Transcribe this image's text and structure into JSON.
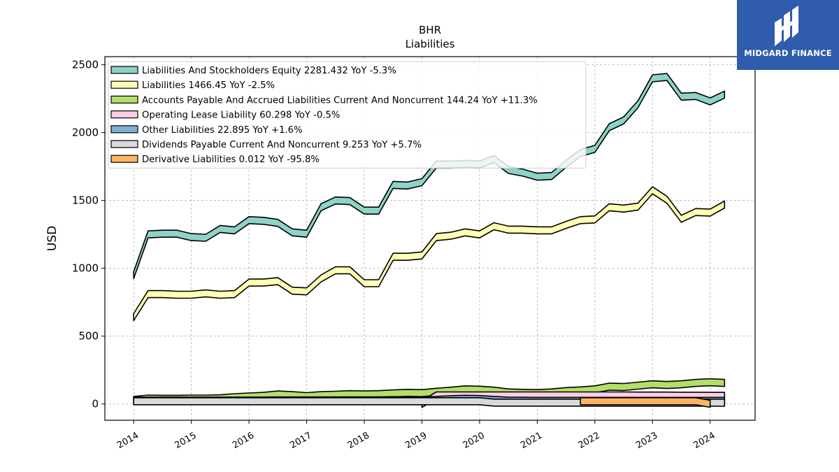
{
  "logo": {
    "text": "MIDGARD FINANCE",
    "icon": "midgard-m-logo-icon"
  },
  "chart_data": {
    "type": "area",
    "title": "BHR",
    "subtitle": "Liabilities",
    "ylabel": "USD",
    "xlabel": "",
    "ylim": [
      -120,
      2560
    ],
    "xlim": [
      2013.5,
      2024.78
    ],
    "yticks": [
      0,
      500,
      1000,
      1500,
      2000,
      2500
    ],
    "xticks": [
      2014,
      2015,
      2016,
      2017,
      2018,
      2019,
      2020,
      2021,
      2022,
      2023,
      2024
    ],
    "grid": true,
    "legend_position": "upper-left",
    "x": [
      2014.0,
      2014.25,
      2014.5,
      2014.75,
      2015.0,
      2015.25,
      2015.5,
      2015.75,
      2016.0,
      2016.25,
      2016.5,
      2016.75,
      2017.0,
      2017.25,
      2017.5,
      2017.75,
      2018.0,
      2018.25,
      2018.5,
      2018.75,
      2019.0,
      2019.25,
      2019.5,
      2019.75,
      2020.0,
      2020.25,
      2020.5,
      2020.75,
      2021.0,
      2021.25,
      2021.5,
      2021.75,
      2022.0,
      2022.25,
      2022.5,
      2022.75,
      2023.0,
      2023.25,
      2023.5,
      2023.75,
      2024.0,
      2024.25
    ],
    "series": [
      {
        "name": "Liabilities And Stockholders Equity",
        "label": "Liabilities And Stockholders Equity  2281.432 YoY -5.3%",
        "color": "#8dd3c7",
        "values": [
          950,
          1250,
          1255,
          1255,
          1230,
          1225,
          1290,
          1280,
          1355,
          1350,
          1335,
          1265,
          1255,
          1450,
          1500,
          1495,
          1425,
          1425,
          1615,
          1610,
          1635,
          1765,
          1765,
          1770,
          1765,
          1805,
          1725,
          1705,
          1675,
          1680,
          1770,
          1850,
          1880,
          2040,
          2090,
          2210,
          2400,
          2410,
          2265,
          2270,
          2230,
          2280
        ]
      },
      {
        "name": "Liabilities",
        "label": "Liabilities  1466.45 YoY -2.5%",
        "color": "#ffffb3",
        "values": [
          640,
          810,
          810,
          805,
          805,
          815,
          805,
          810,
          895,
          895,
          905,
          835,
          830,
          925,
          985,
          985,
          890,
          890,
          1085,
          1085,
          1095,
          1230,
          1240,
          1265,
          1250,
          1310,
          1285,
          1285,
          1280,
          1280,
          1320,
          1355,
          1360,
          1450,
          1440,
          1455,
          1575,
          1505,
          1365,
          1415,
          1410,
          1470
        ]
      },
      {
        "name": "Accounts Payable And Accrued Liabilities Current And Noncurrent",
        "label": "Accounts Payable And Accrued Liabilities Current And Noncurrent  144.24 YoY +11.3%",
        "color": "#b3de69",
        "values": [
          30,
          40,
          38,
          38,
          40,
          40,
          42,
          50,
          55,
          60,
          70,
          65,
          58,
          65,
          68,
          72,
          70,
          72,
          78,
          82,
          80,
          90,
          98,
          108,
          105,
          98,
          85,
          82,
          80,
          85,
          95,
          100,
          108,
          128,
          125,
          135,
          145,
          140,
          145,
          155,
          160,
          155
        ]
      },
      {
        "name": "Operating Lease Liability",
        "label": "Operating Lease Liability  60.298 YoY -0.5%",
        "color": "#fccde5",
        "values": [
          null,
          null,
          null,
          null,
          null,
          null,
          null,
          null,
          null,
          null,
          null,
          null,
          null,
          null,
          null,
          null,
          null,
          null,
          null,
          null,
          0,
          63,
          63,
          63,
          63,
          63,
          63,
          63,
          63,
          63,
          63,
          63,
          63,
          63,
          63,
          62,
          62,
          62,
          61,
          61,
          60,
          60
        ]
      },
      {
        "name": "Other Liabilities",
        "label": "Other Liabilities  22.895 YoY +1.6%",
        "color": "#80b1d3",
        "values": [
          25,
          25,
          25,
          25,
          25,
          25,
          25,
          25,
          25,
          25,
          26,
          26,
          26,
          26,
          26,
          27,
          27,
          27,
          28,
          28,
          28,
          30,
          35,
          38,
          36,
          30,
          25,
          24,
          23,
          23,
          23,
          23,
          23,
          23,
          23,
          23,
          23,
          23,
          23,
          23,
          23,
          23
        ]
      },
      {
        "name": "Dividends Payable Current And Noncurrent",
        "label": "Dividends Payable Current And Noncurrent  9.253 YoY +5.7%",
        "color": "#d9d9d9",
        "values": [
          20,
          20,
          20,
          20,
          20,
          20,
          20,
          20,
          20,
          20,
          20,
          20,
          20,
          20,
          20,
          20,
          20,
          20,
          20,
          20,
          20,
          20,
          20,
          20,
          20,
          10,
          10,
          10,
          10,
          10,
          10,
          10,
          10,
          10,
          10,
          10,
          10,
          10,
          10,
          10,
          10,
          9
        ]
      },
      {
        "name": "Derivative Liabilities",
        "label": "Derivative Liabilities  0.012 YoY -95.8%",
        "color": "#fdb462",
        "values": [
          null,
          null,
          null,
          null,
          null,
          null,
          null,
          null,
          null,
          null,
          null,
          null,
          null,
          null,
          null,
          null,
          null,
          null,
          null,
          null,
          null,
          null,
          null,
          null,
          null,
          null,
          null,
          null,
          null,
          null,
          null,
          20,
          20,
          20,
          20,
          20,
          20,
          20,
          20,
          20,
          1,
          null
        ]
      }
    ]
  }
}
